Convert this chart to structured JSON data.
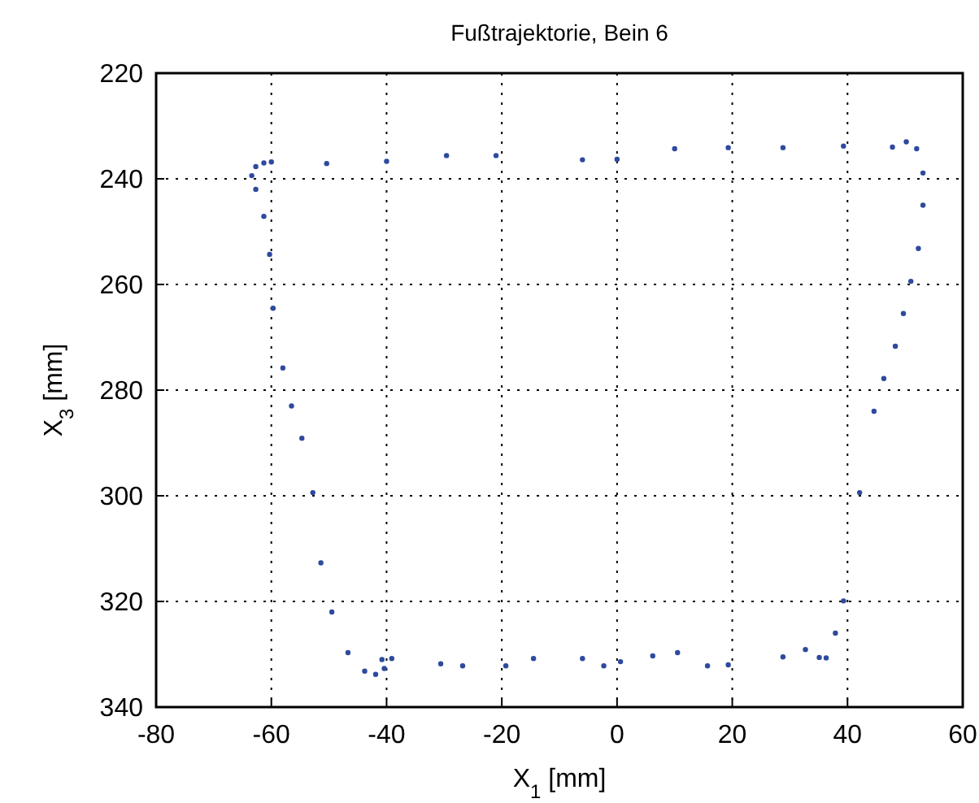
{
  "chart_data": {
    "type": "scatter",
    "title": "Fußtrajektorie, Bein 6",
    "xlabel": "X$_{1}$ [mm]",
    "ylabel": "X$_{3}$ [mm]",
    "xlim": [
      -80,
      60
    ],
    "xticks": [
      -80,
      -60,
      -40,
      -20,
      0,
      20,
      40,
      60
    ],
    "ylim": [
      340,
      220
    ],
    "yticks": [
      220,
      240,
      260,
      280,
      300,
      320,
      340
    ],
    "grid": true,
    "marker": "circle",
    "series": [
      {
        "color": "#2e4a9e",
        "x": [
          -61.3,
          -60,
          -50.4,
          -40,
          -29.6,
          -21,
          -6,
          0,
          10,
          19.3,
          28.8,
          39.3,
          47.8,
          50.2,
          52,
          53.1,
          53.1,
          52.3,
          51,
          49.7,
          48.3,
          46.3,
          44.6,
          42.1,
          39.3,
          37.9,
          36.3,
          35.1,
          32.7,
          28.8,
          19.3,
          15.7,
          10.5,
          6.2,
          0.6,
          -2.3,
          -6,
          -14.5,
          -19.3,
          -26.8,
          -30.6,
          -39.1,
          -40.8,
          -40.4,
          -41.9,
          -43.8,
          -46.7,
          -49.5,
          -51.4,
          -52.8,
          -54.7,
          -56.5,
          -58,
          -59.7,
          -60.3,
          -61.3,
          -62.7,
          -63.4,
          -62.7
        ],
        "values": [
          237,
          236.8,
          237.1,
          236.7,
          235.6,
          235.6,
          236.4,
          236.3,
          234.3,
          234.1,
          234.1,
          233.8,
          234,
          233,
          234.3,
          238.9,
          245,
          253.2,
          259.4,
          265.5,
          271.7,
          277.8,
          284,
          299.4,
          319.9,
          326,
          330.7,
          330.6,
          329.1,
          330.5,
          332,
          332.2,
          329.7,
          330.3,
          331.4,
          332.2,
          330.8,
          330.8,
          332.2,
          332.2,
          331.8,
          330.8,
          331,
          332.7,
          333.8,
          333.2,
          329.7,
          322,
          312.7,
          299.4,
          289.1,
          283,
          275.8,
          264.5,
          254.3,
          247.1,
          242,
          239.4,
          237.7
        ]
      }
    ]
  }
}
